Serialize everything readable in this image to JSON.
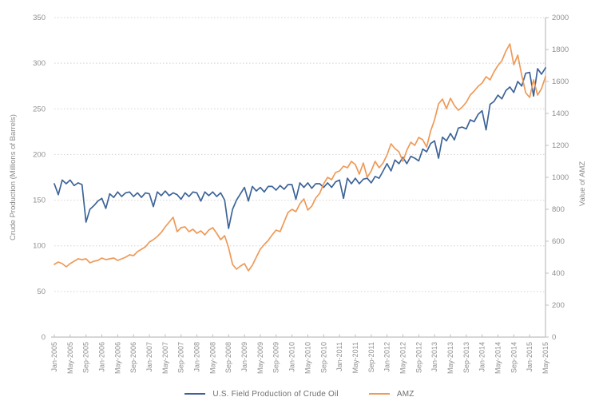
{
  "chart_data": {
    "type": "line",
    "title": "",
    "x_start": "Jan-2005",
    "x_end": "May-2015",
    "x_frequency": "monthly",
    "x_tick_labels": [
      "Jan-2005",
      "May-2005",
      "Sep-2005",
      "Jan-2006",
      "May-2006",
      "Sep-2006",
      "Jan-2007",
      "May-2007",
      "Sep-2007",
      "Jan-2008",
      "May-2008",
      "Sep-2008",
      "Jan-2009",
      "May-2009",
      "Sep-2009",
      "Jan-2010",
      "May-2010",
      "Sep-2010",
      "Jan-2011",
      "May-2011",
      "Sep-2011",
      "Jan-2012",
      "May-2012",
      "Sep-2012",
      "Jan-2013",
      "May-2013",
      "Sep-2013",
      "Jan-2014",
      "May-2014",
      "Sep-2014",
      "Jan-2015",
      "May-2015"
    ],
    "x_tick_month_step": 4,
    "left_axis": {
      "label": "Crude Production (Millions of Barrels)",
      "min": 0,
      "max": 350,
      "tick_step": 50,
      "ticks": [
        0,
        50,
        100,
        150,
        200,
        250,
        300,
        350
      ]
    },
    "right_axis": {
      "label": "Value of AMZ",
      "min": 0,
      "max": 2000,
      "tick_step": 200,
      "ticks": [
        0,
        200,
        400,
        600,
        800,
        1000,
        1200,
        1400,
        1600,
        1800,
        2000
      ]
    },
    "grid": "horizontal-dotted",
    "legend_position": "bottom",
    "series": [
      {
        "name": "U.S. Field Production of Crude Oil",
        "axis": "left",
        "color": "#3d6498",
        "values": [
          168,
          156,
          172,
          168,
          172,
          166,
          169,
          167,
          126,
          140,
          144,
          149,
          152,
          141,
          157,
          153,
          159,
          154,
          158,
          159,
          154,
          158,
          153,
          158,
          157,
          143,
          159,
          155,
          160,
          155,
          158,
          156,
          151,
          158,
          154,
          159,
          158,
          149,
          159,
          155,
          159,
          154,
          158,
          150,
          119,
          140,
          150,
          157,
          164,
          149,
          165,
          160,
          164,
          159,
          165,
          165,
          161,
          166,
          162,
          167,
          167,
          151,
          169,
          164,
          169,
          163,
          168,
          168,
          164,
          169,
          164,
          170,
          172,
          152,
          174,
          168,
          174,
          168,
          173,
          174,
          169,
          176,
          174,
          182,
          190,
          182,
          194,
          190,
          197,
          190,
          198,
          196,
          193,
          206,
          203,
          212,
          215,
          196,
          219,
          215,
          223,
          216,
          229,
          230,
          228,
          238,
          236,
          244,
          248,
          227,
          255,
          258,
          265,
          261,
          270,
          274,
          268,
          280,
          275,
          289,
          290,
          264,
          294,
          288,
          295
        ]
      },
      {
        "name": "AMZ",
        "axis": "right",
        "color": "#ee9a58",
        "values": [
          455,
          470,
          460,
          440,
          460,
          475,
          490,
          485,
          490,
          465,
          475,
          480,
          495,
          485,
          490,
          495,
          480,
          490,
          500,
          515,
          510,
          535,
          550,
          565,
          595,
          610,
          630,
          655,
          690,
          720,
          750,
          660,
          685,
          690,
          660,
          675,
          650,
          665,
          640,
          670,
          685,
          650,
          610,
          635,
          560,
          455,
          425,
          445,
          460,
          415,
          450,
          500,
          550,
          580,
          605,
          640,
          670,
          660,
          720,
          780,
          800,
          785,
          835,
          865,
          795,
          820,
          870,
          900,
          960,
          1000,
          985,
          1030,
          1040,
          1070,
          1060,
          1100,
          1080,
          1020,
          1090,
          1000,
          1040,
          1100,
          1060,
          1090,
          1140,
          1210,
          1180,
          1160,
          1100,
          1170,
          1220,
          1200,
          1250,
          1235,
          1190,
          1290,
          1360,
          1460,
          1490,
          1430,
          1495,
          1450,
          1420,
          1440,
          1470,
          1515,
          1540,
          1570,
          1590,
          1630,
          1610,
          1660,
          1700,
          1730,
          1790,
          1835,
          1705,
          1765,
          1640,
          1530,
          1500,
          1610,
          1515,
          1555,
          1630
        ]
      }
    ],
    "style": {
      "tick_label_color": "#8f8f8f",
      "axis_line_color": "#bfbfbf",
      "gridline_color": "#d2d2d2",
      "axis_title_color": "#8a8a8a"
    }
  }
}
